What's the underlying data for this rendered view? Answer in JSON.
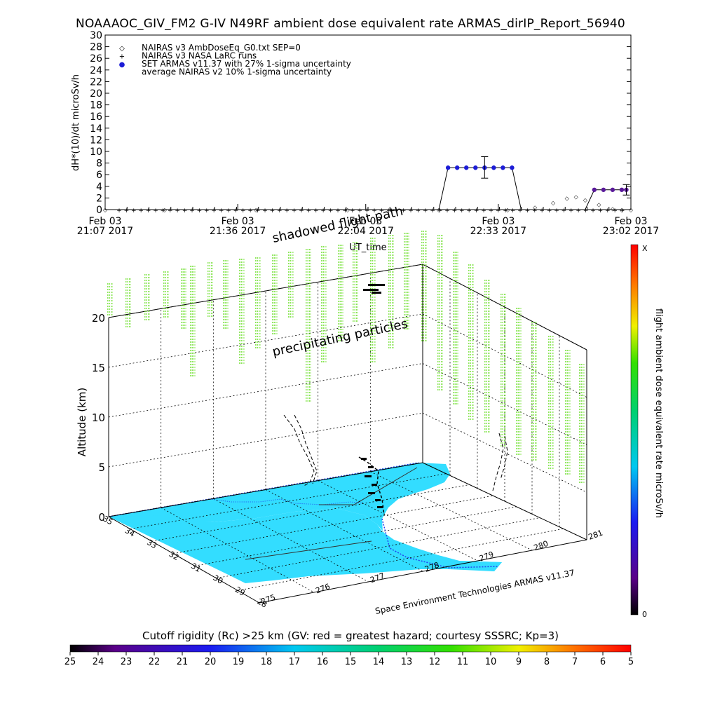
{
  "title": "NOAAAOC_GIV_FM2 G-IV   N49RF  ambient dose equivalent rate ARMAS_dirIP_Report_56940",
  "top_chart": {
    "ylabel": "dH*(10)/dt microSv/h",
    "xlabel": "UT_time",
    "legend": [
      {
        "symbol": "◇",
        "text": "NAIRAS v3 AmbDoseEq_G0.txt SEP=0"
      },
      {
        "symbol": "+",
        "text": "NAIRAS v3 NASA LaRC runs"
      },
      {
        "symbol": "●",
        "text": "SET ARMAS v11.37 with 27% 1-sigma uncertainty"
      },
      {
        "symbol": "",
        "text": "average NAIRAS v2 10% 1-sigma uncertainty"
      }
    ],
    "x_ticks": [
      {
        "date": "Feb 03",
        "time": "21:07 2017"
      },
      {
        "date": "Feb 03",
        "time": "21:36 2017"
      },
      {
        "date": "Feb 03",
        "time": "22:04 2017"
      },
      {
        "date": "Feb 03",
        "time": "22:33 2017"
      },
      {
        "date": "Feb 03",
        "time": "23:02 2017"
      }
    ]
  },
  "chart_data": [
    {
      "type": "line",
      "title": "NOAAAOC_GIV_FM2 G-IV   N49RF  ambient dose equivalent rate ARMAS_dirIP_Report_56940",
      "xlabel": "UT_time",
      "ylabel": "dH*(10)/dt microSv/h",
      "xlim": [
        "21:07",
        "23:02"
      ],
      "ylim": [
        0,
        30
      ],
      "y_ticks": [
        0,
        2,
        4,
        6,
        8,
        10,
        12,
        14,
        16,
        18,
        20,
        22,
        24,
        26,
        28,
        30
      ],
      "grid": false,
      "legend_position": "top-left",
      "series": [
        {
          "name": "NAIRAS v3 AmbDoseEq_G0.txt SEP=0",
          "style": "diamond",
          "x": [
            "21:07",
            "21:20",
            "21:40",
            "22:00",
            "22:20",
            "22:35",
            "22:41",
            "22:45",
            "22:48",
            "22:50",
            "22:52",
            "22:55",
            "22:58",
            "23:00",
            "23:02"
          ],
          "values": [
            0,
            0,
            0,
            0,
            0,
            0,
            0.4,
            1.2,
            2.0,
            2.2,
            1.7,
            0.9,
            0.2,
            0,
            0
          ]
        },
        {
          "name": "NAIRAS v3 NASA LaRC runs",
          "style": "plus",
          "x": [
            "21:07",
            "21:30",
            "22:00",
            "22:20",
            "22:40",
            "23:02"
          ],
          "values": [
            0,
            0,
            0,
            0,
            0,
            0
          ]
        },
        {
          "name": "SET ARMAS v11.37 with 27% 1-sigma uncertainty",
          "style": "dot",
          "x": [
            "22:08",
            "22:10",
            "22:12",
            "22:14",
            "22:16",
            "22:18",
            "22:20",
            "22:22",
            "22:24",
            "22:26",
            "22:28",
            "22:30",
            "22:32",
            "22:34",
            "22:36",
            "22:38",
            "22:40",
            "22:42",
            "22:44",
            "22:46",
            "22:48",
            "22:50",
            "22:52",
            "22:54",
            "22:56",
            "22:58",
            "23:00",
            "23:01"
          ],
          "values": [
            0,
            0,
            0,
            0,
            0,
            0,
            0,
            7.2,
            7.2,
            7.2,
            7.2,
            7.2,
            7.2,
            7.2,
            7.2,
            0,
            0,
            0,
            0,
            0,
            0,
            0,
            0,
            3.4,
            3.4,
            3.4,
            3.4,
            3.4
          ],
          "error_bars": [
            {
              "x": "22:30",
              "value": 7.2,
              "low": 5.4,
              "high": 9.1
            },
            {
              "x": "23:01",
              "value": 3.4,
              "low": 2.5,
              "high": 4.3
            }
          ]
        }
      ]
    },
    {
      "type": "scatter",
      "title": "",
      "zlabel": "Altitude (km)",
      "z_ticks": [
        0,
        5,
        10,
        15,
        20
      ],
      "lat_ticks": [
        35,
        34,
        33,
        32,
        31,
        30,
        29,
        28
      ],
      "lon_ticks": [
        275,
        276,
        277,
        278,
        279,
        280,
        281
      ],
      "colorbar_label": "flight ambient dose equivalent rate microSv/h",
      "colorbar_range": [
        "0",
        "X"
      ],
      "annotations": [
        "shadowed flight path",
        "precipitating particles"
      ]
    }
  ],
  "box3d": {
    "zlabel": "Altitude (km)",
    "z_ticks": [
      "0",
      "5",
      "10",
      "15",
      "20"
    ],
    "lat_ticks": [
      "35",
      "34",
      "33",
      "32",
      "31",
      "30",
      "29",
      "28"
    ],
    "lon_ticks": [
      "275",
      "276",
      "277",
      "278",
      "279",
      "280",
      "281"
    ],
    "annotation_shadow": "shadowed flight path",
    "annotation_precip": "precipitating particles",
    "credit": "Space Environment Technologies ARMAS v11.37"
  },
  "colorbar": {
    "label": "flight ambient dose equivalent rate microSv/h",
    "top": "X",
    "bottom": "0"
  },
  "cutoff_bar": {
    "title": "Cutoff rigidity (Rc) >25 km (GV: red = greatest hazard; courtesy SSSRC; Kp=3)",
    "ticks": [
      "25",
      "24",
      "23",
      "22",
      "21",
      "20",
      "19",
      "18",
      "17",
      "16",
      "15",
      "14",
      "13",
      "12",
      "11",
      "10",
      "9",
      "8",
      "7",
      "6",
      "5"
    ]
  },
  "colors": {
    "armas": "#1c1cd6",
    "armas_late": "#5a1a9a",
    "precip": "#66dd22",
    "land": "#33ddff",
    "coast": "#2244ee"
  }
}
